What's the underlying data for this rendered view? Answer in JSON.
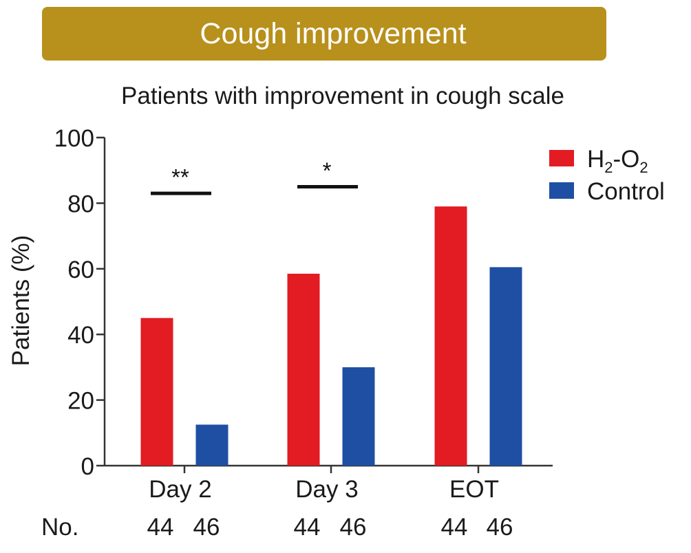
{
  "header": {
    "title": "Cough improvement",
    "banner_color": "#b8901c"
  },
  "chart_data": {
    "type": "bar",
    "title": "Patients with improvement in cough scale",
    "xlabel": "",
    "ylabel": "Patients (%)",
    "ylim": [
      0,
      100
    ],
    "yticks": [
      "0",
      "20",
      "40",
      "60",
      "80",
      "100"
    ],
    "categories": [
      "Day 2",
      "Day 3",
      "EOT"
    ],
    "series": [
      {
        "name_main": "H",
        "name_sub1": "2",
        "name_mid": "-O",
        "name_sub2": "2",
        "color": "#e31b23",
        "values": [
          45,
          58.5,
          79
        ]
      },
      {
        "name": "Control",
        "color": "#1f4fa3",
        "values": [
          12.5,
          30,
          60.5
        ]
      }
    ],
    "significance": [
      {
        "category": "Day 2",
        "label": "**",
        "level": 83
      },
      {
        "category": "Day 3",
        "label": "*",
        "level": 85
      }
    ],
    "legend_position": "top-right",
    "sample_size": {
      "label": "No.",
      "counts": [
        [
          "44",
          "46"
        ],
        [
          "44",
          "46"
        ],
        [
          "44",
          "46"
        ]
      ]
    }
  }
}
